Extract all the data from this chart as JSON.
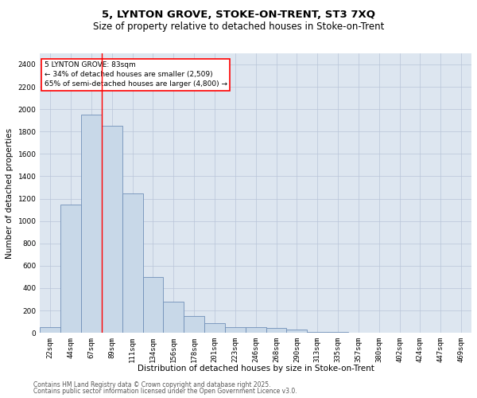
{
  "title1": "5, LYNTON GROVE, STOKE-ON-TRENT, ST3 7XQ",
  "title2": "Size of property relative to detached houses in Stoke-on-Trent",
  "xlabel": "Distribution of detached houses by size in Stoke-on-Trent",
  "ylabel": "Number of detached properties",
  "categories": [
    "22sqm",
    "44sqm",
    "67sqm",
    "89sqm",
    "111sqm",
    "134sqm",
    "156sqm",
    "178sqm",
    "201sqm",
    "223sqm",
    "246sqm",
    "268sqm",
    "290sqm",
    "313sqm",
    "335sqm",
    "357sqm",
    "380sqm",
    "402sqm",
    "424sqm",
    "447sqm",
    "469sqm"
  ],
  "values": [
    50,
    1150,
    1950,
    1850,
    1250,
    500,
    280,
    150,
    90,
    50,
    50,
    45,
    30,
    10,
    5,
    3,
    2,
    1,
    1,
    0,
    0
  ],
  "bar_color": "#c8d8e8",
  "bar_edge_color": "#7090b8",
  "bar_linewidth": 0.6,
  "vline_x": 2.5,
  "annotation_text": "5 LYNTON GROVE: 83sqm\n← 34% of detached houses are smaller (2,509)\n65% of semi-detached houses are larger (4,800) →",
  "annotation_box_color": "white",
  "annotation_box_edge_color": "red",
  "vline_color": "red",
  "vline_linewidth": 1.0,
  "ylim": [
    0,
    2500
  ],
  "yticks": [
    0,
    200,
    400,
    600,
    800,
    1000,
    1200,
    1400,
    1600,
    1800,
    2000,
    2200,
    2400
  ],
  "grid_color": "#b8c4d8",
  "bg_color": "#dde6f0",
  "footer1": "Contains HM Land Registry data © Crown copyright and database right 2025.",
  "footer2": "Contains public sector information licensed under the Open Government Licence v3.0.",
  "title_fontsize": 9.5,
  "subtitle_fontsize": 8.5,
  "axis_label_fontsize": 7.5,
  "tick_fontsize": 6.5,
  "annotation_fontsize": 6.5,
  "footer_fontsize": 5.5
}
